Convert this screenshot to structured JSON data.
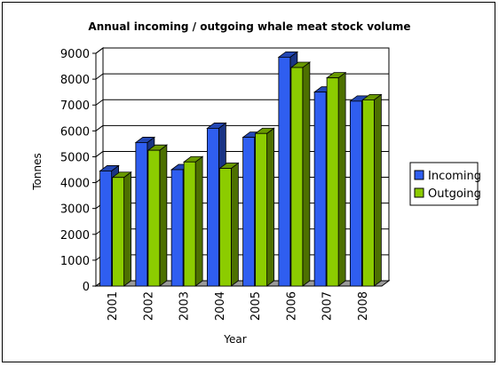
{
  "chart_data": {
    "type": "bar",
    "title": "Annual incoming / outgoing whale meat stock volume",
    "xlabel": "Year",
    "ylabel": "Tonnes",
    "categories": [
      "2001",
      "2002",
      "2003",
      "2004",
      "2005",
      "2006",
      "2007",
      "2008"
    ],
    "series": [
      {
        "name": "Incoming",
        "color": "#2f5ef0",
        "values": [
          4450,
          5550,
          4500,
          6100,
          5750,
          8850,
          7500,
          7150
        ]
      },
      {
        "name": "Outgoing",
        "color": "#8ccc00",
        "values": [
          4200,
          5250,
          4800,
          4550,
          5900,
          8450,
          8050,
          7200
        ]
      }
    ],
    "ylim": [
      0,
      9000
    ],
    "yticks": [
      0,
      1000,
      2000,
      3000,
      4000,
      5000,
      6000,
      7000,
      8000,
      9000
    ],
    "grid": true,
    "legend_position": "right"
  }
}
